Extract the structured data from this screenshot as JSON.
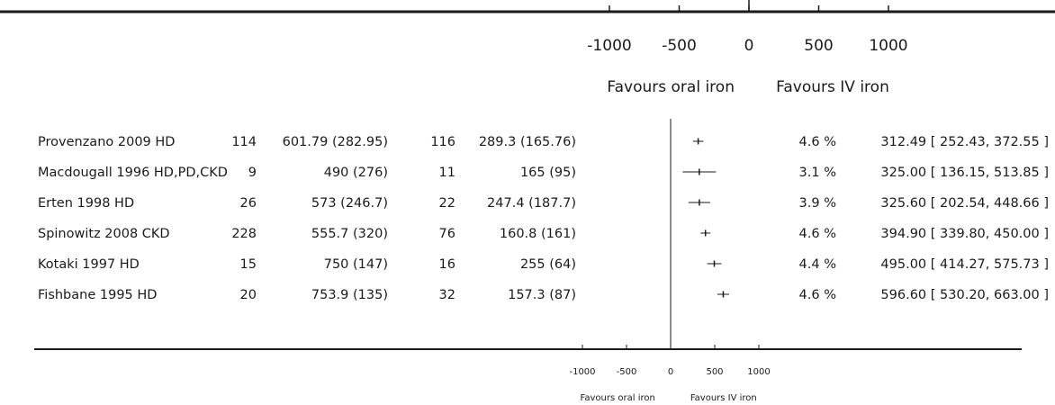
{
  "chart_data": [
    {
      "type": "forest",
      "x_ticks": [
        -1000,
        -500,
        0,
        500,
        1000
      ],
      "xlim": [
        -1000,
        1000
      ],
      "favours_left": "Favours oral iron",
      "favours_right": "Favours IV iron",
      "rows": []
    },
    {
      "type": "forest",
      "x_ticks": [
        -1000,
        -500,
        0,
        500,
        1000
      ],
      "xlim": [
        -1000,
        1000
      ],
      "favours_left": "Favours oral iron",
      "favours_right": "Favours IV iron",
      "rows": [
        {
          "study": "Provenzano 2009 HD",
          "n1": "114",
          "mean_sd1": "601.79 (282.95)",
          "n2": "116",
          "mean_sd2": "289.3 (165.76)",
          "weight": "4.6 %",
          "ci_text": "312.49 [ 252.43, 372.55 ]",
          "est": 312.49,
          "lo": 252.43,
          "hi": 372.55
        },
        {
          "study": "Macdougall 1996 HD,PD,CKD",
          "n1": "9",
          "mean_sd1": "490 (276)",
          "n2": "11",
          "mean_sd2": "165 (95)",
          "weight": "3.1 %",
          "ci_text": "325.00 [ 136.15, 513.85 ]",
          "est": 325.0,
          "lo": 136.15,
          "hi": 513.85
        },
        {
          "study": "Erten 1998 HD",
          "n1": "26",
          "mean_sd1": "573 (246.7)",
          "n2": "22",
          "mean_sd2": "247.4 (187.7)",
          "weight": "3.9 %",
          "ci_text": "325.60 [ 202.54, 448.66 ]",
          "est": 325.6,
          "lo": 202.54,
          "hi": 448.66
        },
        {
          "study": "Spinowitz 2008 CKD",
          "n1": "228",
          "mean_sd1": "555.7 (320)",
          "n2": "76",
          "mean_sd2": "160.8 (161)",
          "weight": "4.6 %",
          "ci_text": "394.90 [ 339.80, 450.00 ]",
          "est": 394.9,
          "lo": 339.8,
          "hi": 450.0
        },
        {
          "study": "Kotaki 1997 HD",
          "n1": "15",
          "mean_sd1": "750 (147)",
          "n2": "16",
          "mean_sd2": "255 (64)",
          "weight": "4.4 %",
          "ci_text": "495.00 [ 414.27, 575.73 ]",
          "est": 495.0,
          "lo": 414.27,
          "hi": 575.73
        },
        {
          "study": "Fishbane 1995 HD",
          "n1": "20",
          "mean_sd1": "753.9 (135)",
          "n2": "32",
          "mean_sd2": "157.3 (87)",
          "weight": "4.6 %",
          "ci_text": "596.60 [ 530.20, 663.00 ]",
          "est": 596.6,
          "lo": 530.2,
          "hi": 663.0
        }
      ]
    }
  ]
}
